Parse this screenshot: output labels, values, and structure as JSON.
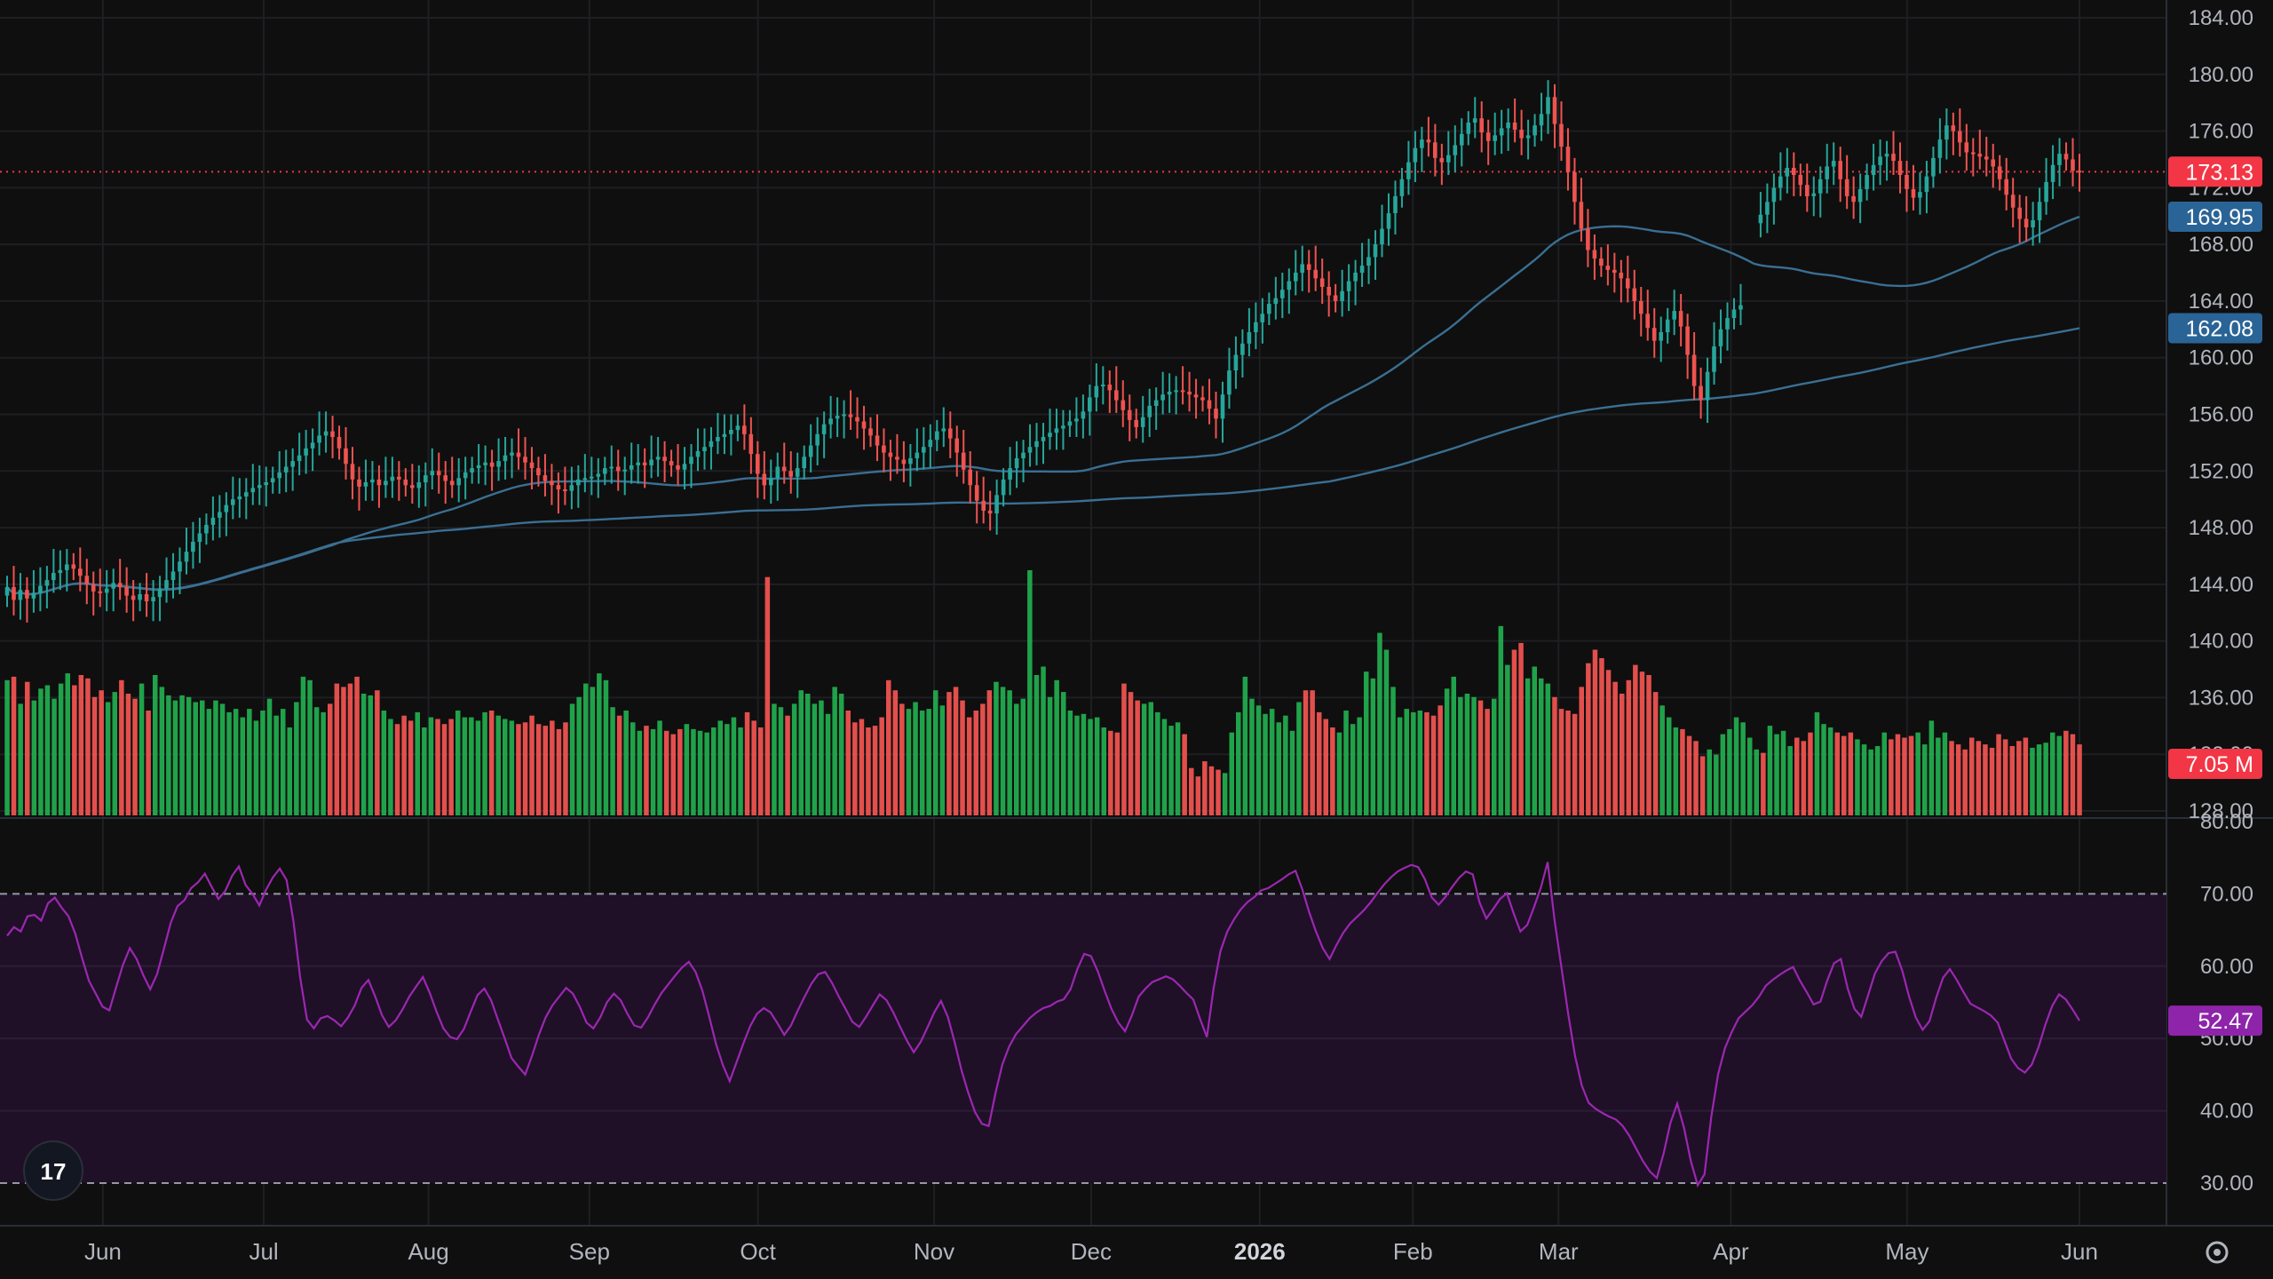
{
  "instrument": {
    "last_price": 173.13
  },
  "colors": {
    "background": "#0f0f0f",
    "grid": "#1e1f23",
    "up": "#26a69a",
    "up_volume": "#22ab4e",
    "down": "#ef5350",
    "ma_fast": "#3a6f93",
    "ma_slow": "#3a6f93",
    "last_price": "#f23645",
    "ma_fast_tag": "#2a6496",
    "ma_slow_tag": "#2a6496",
    "volume_tag": "#f23645",
    "rsi_line": "#9c27b0",
    "rsi_band": "#1f1028",
    "rsi_tag": "#8e24aa",
    "rsi_levels": "#9598a1"
  },
  "price_axis": {
    "ticks": [
      "184.00",
      "180.00",
      "176.00",
      "172.00",
      "168.00",
      "164.00",
      "160.00",
      "156.00",
      "152.00",
      "148.00",
      "144.00",
      "140.00",
      "136.00",
      "132.00",
      "128.00"
    ]
  },
  "rsi_axis": {
    "ticks": [
      "80.00",
      "70.00",
      "60.00",
      "50.00",
      "40.00",
      "30.00"
    ]
  },
  "time_axis": {
    "labels": [
      "Jun",
      "Jul",
      "Aug",
      "Sep",
      "Oct",
      "Nov",
      "Dec",
      "2026",
      "Feb",
      "Mar",
      "Apr",
      "May",
      "Jun"
    ],
    "bold_label": "2026"
  },
  "tags": {
    "last_price": "173.13",
    "ma_fast": "169.95",
    "ma_slow": "162.08",
    "volume": "7.05 M",
    "rsi": "52.47"
  },
  "logo_text": "17",
  "settings_icon": "gear-icon",
  "chart_data": [
    {
      "type": "candlestick",
      "title": "",
      "x_range": [
        "Jun",
        "Jun"
      ],
      "ylim": [
        128,
        184
      ],
      "ticks_y": [
        184,
        180,
        176,
        172,
        168,
        164,
        160,
        156,
        152,
        148,
        144,
        140,
        136,
        132,
        128
      ],
      "last_price": 173.13,
      "closes": [
        143.8,
        142.9,
        143.6,
        143.0,
        143.4,
        143.9,
        144.3,
        144.8,
        145.0,
        145.4,
        145.1,
        144.6,
        144.0,
        143.5,
        143.4,
        143.7,
        144.1,
        143.8,
        143.2,
        142.9,
        143.3,
        142.8,
        143.1,
        143.7,
        144.3,
        144.9,
        145.6,
        146.3,
        147.0,
        147.6,
        148.2,
        148.7,
        149.1,
        149.6,
        150.0,
        150.2,
        150.5,
        150.8,
        151.0,
        151.2,
        151.5,
        151.9,
        152.3,
        152.7,
        153.1,
        153.6,
        154.0,
        154.5,
        154.8,
        154.4,
        153.6,
        152.5,
        151.4,
        150.9,
        151.2,
        151.4,
        151.0,
        151.3,
        151.6,
        151.4,
        151.0,
        150.8,
        151.2,
        151.7,
        152.0,
        151.7,
        151.3,
        151.0,
        151.5,
        151.9,
        152.2,
        152.4,
        152.6,
        152.3,
        152.7,
        153.1,
        153.3,
        153.0,
        152.6,
        152.2,
        151.7,
        151.3,
        151.0,
        150.7,
        150.6,
        151.0,
        151.4,
        151.5,
        151.6,
        151.8,
        152.2,
        152.3,
        152.0,
        152.1,
        152.4,
        152.6,
        152.4,
        152.8,
        153.0,
        152.7,
        152.4,
        152.1,
        152.5,
        153.0,
        153.4,
        153.7,
        154.1,
        154.4,
        154.6,
        154.9,
        155.2,
        154.6,
        153.2,
        151.8,
        151.0,
        151.5,
        152.3,
        152.0,
        151.6,
        152.2,
        153.0,
        153.8,
        154.6,
        155.3,
        155.7,
        155.9,
        156.0,
        155.8,
        155.5,
        155.0,
        154.5,
        153.8,
        153.3,
        153.0,
        152.8,
        152.5,
        152.9,
        153.3,
        153.7,
        154.2,
        154.8,
        155.0,
        154.3,
        153.3,
        152.1,
        151.0,
        149.9,
        149.2,
        149.0,
        150.3,
        151.4,
        152.2,
        152.9,
        153.3,
        153.7,
        154.1,
        154.4,
        154.7,
        155.0,
        155.2,
        155.5,
        155.7,
        156.2,
        157.2,
        158.0,
        158.1,
        157.7,
        157.0,
        156.3,
        155.6,
        155.1,
        155.8,
        156.6,
        157.0,
        157.4,
        157.6,
        157.7,
        157.6,
        157.4,
        157.2,
        157.0,
        156.4,
        155.7,
        157.4,
        159.1,
        160.2,
        161.0,
        161.8,
        162.5,
        163.1,
        163.8,
        164.2,
        164.8,
        165.4,
        166.0,
        166.6,
        166.2,
        165.6,
        165.0,
        164.4,
        164.0,
        164.7,
        165.4,
        166.0,
        166.5,
        167.1,
        168.0,
        169.1,
        170.2,
        171.4,
        172.6,
        173.8,
        174.8,
        175.4,
        175.2,
        174.1,
        173.8,
        174.3,
        175.0,
        175.8,
        176.6,
        176.9,
        175.9,
        175.3,
        175.7,
        176.2,
        176.6,
        176.1,
        175.5,
        175.7,
        176.4,
        177.2,
        178.4,
        176.5,
        174.9,
        173.1,
        171.0,
        169.1,
        167.6,
        167.0,
        166.5,
        166.2,
        166.0,
        165.6,
        164.9,
        164.0,
        163.1,
        162.1,
        161.2,
        161.8,
        162.7,
        163.3,
        162.2,
        160.2,
        158.0,
        157.0,
        159.0,
        160.8,
        162.0,
        162.8,
        163.4,
        163.7,
        null,
        null,
        170.1,
        171.0,
        172.0,
        172.8,
        173.4,
        172.9,
        172.2,
        171.4,
        171.6,
        172.6,
        173.5,
        173.9,
        172.6,
        171.4,
        171.0,
        171.9,
        172.9,
        173.6,
        174.2,
        174.4,
        173.9,
        172.9,
        171.9,
        171.3,
        171.7,
        172.8,
        174.1,
        175.4,
        176.4,
        176.0,
        175.2,
        174.5,
        174.4,
        174.2,
        174.0,
        173.5,
        172.6,
        171.5,
        170.6,
        169.8,
        169.2,
        169.7,
        171.0,
        172.4,
        173.6,
        174.4,
        174.0,
        173.2,
        173.13
      ],
      "ma_fast_endpoints": {
        "last": 169.95
      },
      "ma_slow_endpoints": {
        "last": 162.08
      }
    },
    {
      "type": "bar",
      "title": "Volume",
      "last_value_label": "7.05 M",
      "ylim": [
        0,
        16
      ],
      "values": [
        8.0,
        8.2,
        6.6,
        7.9,
        6.8,
        7.5,
        7.7,
        6.9,
        7.8,
        8.4,
        7.7,
        8.3,
        8.1,
        7.0,
        7.4,
        6.7,
        7.3,
        8.0,
        7.2,
        6.9,
        7.8,
        6.2,
        8.3,
        7.6,
        7.1,
        6.8,
        7.1,
        7.0,
        6.7,
        6.8,
        6.3,
        6.8,
        6.6,
        6.1,
        6.3,
        5.8,
        6.3,
        5.6,
        6.2,
        6.9,
        5.9,
        6.3,
        5.2,
        6.7,
        8.2,
        8.0,
        6.4,
        6.1,
        6.6,
        7.8,
        7.6,
        7.8,
        8.2,
        7.2,
        7.1,
        7.4,
        6.2,
        5.7,
        5.4,
        5.9,
        5.6,
        6.1,
        5.2,
        5.8,
        5.7,
        5.4,
        5.7,
        6.2,
        5.8,
        5.8,
        5.6,
        6.1,
        6.2,
        5.9,
        5.7,
        5.6,
        5.4,
        5.5,
        5.9,
        5.4,
        5.3,
        5.6,
        5.1,
        5.5,
        6.6,
        7.0,
        7.8,
        7.6,
        8.4,
        8.0,
        6.4,
        5.9,
        6.2,
        5.5,
        5.0,
        5.3,
        5.1,
        5.6,
        5.0,
        4.8,
        5.1,
        5.4,
        5.1,
        5.0,
        4.9,
        5.2,
        5.6,
        5.4,
        5.8,
        5.2,
        6.1,
        5.6,
        5.2,
        14.1,
        6.6,
        6.4,
        5.9,
        6.6,
        7.4,
        7.2,
        6.6,
        6.8,
        6.0,
        7.6,
        7.2,
        6.2,
        5.5,
        5.7,
        5.2,
        5.3,
        5.8,
        8.0,
        7.4,
        6.6,
        6.3,
        6.7,
        6.2,
        6.3,
        7.4,
        6.5,
        7.3,
        7.6,
        6.8,
        5.8,
        6.2,
        6.6,
        7.4,
        7.9,
        7.6,
        7.4,
        6.6,
        6.9,
        14.5,
        8.3,
        8.8,
        7.0,
        8.0,
        7.3,
        6.2,
        5.9,
        6.0,
        5.7,
        5.8,
        5.2,
        5.0,
        4.9,
        7.8,
        7.3,
        6.8,
        6.6,
        6.7,
        6.1,
        5.7,
        5.3,
        5.5,
        4.8,
        2.8,
        2.3,
        3.2,
        2.9,
        2.7,
        2.5,
        4.9,
        6.1,
        8.2,
        6.9,
        6.5,
        6.0,
        6.3,
        5.5,
        5.9,
        5.0,
        6.7,
        7.4,
        7.4,
        6.1,
        5.7,
        5.2,
        4.9,
        6.2,
        5.4,
        5.8,
        8.5,
        8.1,
        10.8,
        9.8,
        7.6,
        5.8,
        6.3,
        6.1,
        6.2,
        6.1,
        5.9,
        6.5,
        7.5,
        8.2,
        7.0,
        7.2,
        7.0,
        6.8,
        6.3,
        6.9,
        11.2,
        8.9,
        9.8,
        10.2,
        8.1,
        8.8,
        8.1,
        7.8,
        7.0,
        6.3,
        6.2,
        6.0,
        7.6,
        9.0,
        9.8,
        9.3,
        8.6,
        7.9,
        7.2,
        8.0,
        8.9,
        8.5,
        8.3,
        7.3,
        6.5,
        5.8,
        5.2,
        5.1,
        4.7,
        4.4,
        3.5,
        3.9,
        3.6,
        4.8,
        5.1,
        5.8,
        5.5,
        4.6,
        3.9,
        3.7,
        5.3,
        4.8,
        5.0,
        4.1,
        4.6,
        4.4,
        4.9,
        6.1,
        5.4,
        5.2,
        4.9,
        4.7,
        4.9,
        4.5,
        4.2,
        3.9,
        4.1,
        4.9,
        4.5,
        4.8,
        4.6,
        4.7,
        4.9,
        4.2,
        5.6,
        4.6,
        4.9,
        4.4,
        4.2,
        3.9,
        4.6,
        4.4,
        4.2,
        4.0,
        4.8,
        4.5,
        4.1,
        4.4,
        4.6,
        4.0,
        4.2,
        4.3,
        4.9,
        4.7,
        5.0,
        4.8,
        4.2
      ]
    },
    {
      "type": "line",
      "title": "RSI",
      "ylim": [
        30,
        80
      ],
      "levels": [
        70,
        30
      ],
      "last_value": 52.47,
      "values": [
        64.2,
        65.4,
        64.8,
        66.9,
        67.1,
        66.3,
        68.7,
        69.5,
        68.1,
        66.9,
        64.5,
        61.1,
        58.0,
        56.2,
        54.4,
        53.9,
        57.1,
        60.2,
        62.5,
        61.0,
        58.7,
        56.8,
        58.9,
        62.4,
        66.0,
        68.3,
        69.1,
        70.8,
        71.6,
        72.8,
        71.0,
        69.3,
        70.4,
        72.5,
        73.8,
        71.2,
        70.0,
        68.4,
        70.6,
        72.3,
        73.5,
        71.9,
        66.2,
        58.4,
        52.6,
        51.4,
        52.8,
        53.1,
        52.5,
        51.7,
        52.9,
        54.6,
        57.0,
        58.1,
        55.8,
        53.2,
        51.6,
        52.5,
        54.0,
        55.8,
        57.2,
        58.5,
        56.3,
        53.7,
        51.4,
        50.2,
        49.9,
        51.3,
        53.7,
        56.0,
        56.9,
        55.3,
        52.6,
        50.0,
        47.3,
        46.1,
        45.0,
        47.6,
        50.5,
        52.9,
        54.6,
        55.8,
        57.0,
        56.2,
        54.4,
        52.2,
        51.4,
        52.9,
        55.0,
        56.2,
        55.3,
        53.4,
        51.8,
        51.5,
        52.9,
        54.7,
        56.3,
        57.5,
        58.7,
        59.8,
        60.6,
        59.2,
        56.6,
        53.0,
        49.2,
        46.3,
        44.1,
        46.7,
        49.3,
        51.7,
        53.4,
        54.2,
        53.6,
        52.1,
        50.5,
        51.8,
        53.9,
        55.8,
        57.6,
        58.9,
        59.2,
        57.7,
        55.8,
        54.1,
        52.3,
        51.6,
        53.0,
        54.6,
        56.1,
        55.3,
        53.6,
        51.6,
        49.7,
        48.1,
        49.5,
        51.5,
        53.6,
        55.2,
        53.0,
        49.5,
        45.6,
        42.5,
        39.8,
        38.2,
        37.9,
        42.5,
        46.4,
        48.9,
        50.6,
        51.7,
        52.8,
        53.6,
        54.2,
        54.5,
        55.1,
        55.4,
        56.8,
        59.6,
        61.7,
        61.4,
        59.3,
        56.6,
        54.1,
        52.2,
        51.0,
        53.2,
        55.8,
        56.9,
        57.8,
        58.2,
        58.6,
        58.2,
        57.3,
        56.3,
        55.4,
        52.7,
        50.2,
        57.0,
        62.1,
        64.8,
        66.5,
        67.9,
        68.9,
        69.6,
        70.5,
        70.8,
        71.4,
        72.0,
        72.7,
        73.2,
        70.6,
        67.5,
        64.8,
        62.5,
        61.0,
        62.9,
        64.6,
        65.9,
        66.8,
        67.7,
        68.8,
        70.1,
        71.3,
        72.3,
        73.1,
        73.6,
        74.0,
        73.7,
        72.0,
        69.5,
        68.5,
        69.6,
        71.0,
        72.2,
        73.1,
        72.7,
        68.8,
        66.6,
        67.9,
        69.3,
        70.1,
        67.3,
        64.8,
        65.7,
        68.2,
        70.9,
        74.4,
        66.4,
        59.9,
        53.4,
        47.6,
        43.5,
        41.1,
        40.3,
        39.7,
        39.2,
        38.8,
        37.9,
        36.5,
        34.7,
        33.0,
        31.6,
        30.7,
        34.1,
        38.3,
        41.0,
        37.6,
        33.0,
        29.7,
        31.2,
        39.2,
        45.1,
        48.7,
        50.9,
        52.8,
        53.7,
        54.6,
        55.8,
        57.3,
        58.1,
        58.8,
        59.4,
        59.9,
        58.0,
        56.4,
        54.7,
        55.1,
        58.0,
        60.4,
        61.0,
        56.9,
        54.1,
        53.0,
        56.0,
        59.0,
        60.7,
        61.8,
        62.0,
        59.4,
        55.8,
        52.9,
        51.2,
        52.4,
        55.7,
        58.4,
        59.6,
        58.1,
        56.4,
        54.8,
        54.3,
        53.8,
        53.2,
        52.2,
        49.7,
        47.2,
        45.9,
        45.3,
        46.4,
        48.8,
        51.9,
        54.5,
        56.1,
        55.4,
        54.0,
        52.47
      ]
    }
  ]
}
